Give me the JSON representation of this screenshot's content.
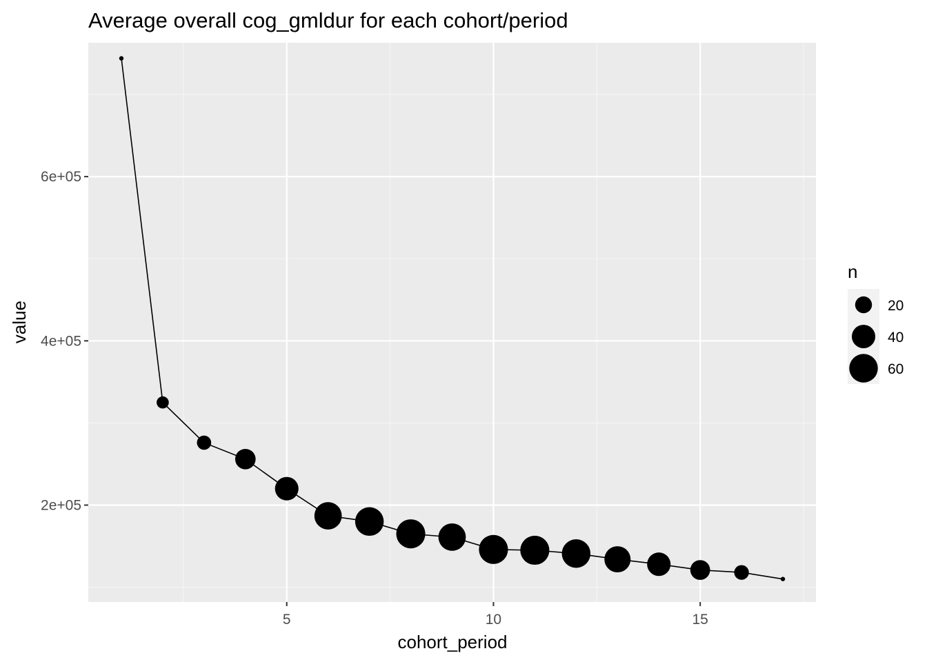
{
  "chart_data": {
    "type": "scatter",
    "title": "Average overall cog_gmldur for each cohort/period",
    "xlabel": "cohort_period",
    "ylabel": "value",
    "xlim": [
      0.2,
      17.8
    ],
    "ylim": [
      82000,
      763000
    ],
    "x_ticks": [
      5,
      10,
      15
    ],
    "x_tick_labels": [
      "5",
      "10",
      "15"
    ],
    "y_ticks": [
      200000,
      400000,
      600000
    ],
    "y_tick_labels": [
      "2e+05",
      "4e+05",
      "6e+05"
    ],
    "grid": true,
    "line": true,
    "legend": {
      "title": "n",
      "placement": "right",
      "entries": [
        {
          "value": 20,
          "label": "20"
        },
        {
          "value": 40,
          "label": "40"
        },
        {
          "value": 60,
          "label": "60"
        }
      ]
    },
    "series": [
      {
        "x": [
          1,
          2,
          3,
          4,
          5,
          6,
          7,
          8,
          9,
          10,
          11,
          12,
          13,
          14,
          15,
          16,
          17
        ],
        "y": [
          744000,
          325000,
          276000,
          256000,
          220000,
          187000,
          180000,
          165000,
          161000,
          146000,
          145000,
          141000,
          134000,
          128000,
          121000,
          118000,
          110000
        ],
        "n": [
          1,
          10,
          14,
          30,
          40,
          55,
          60,
          62,
          55,
          62,
          62,
          60,
          50,
          40,
          28,
          15,
          1
        ]
      }
    ],
    "colors": {
      "panel_background": "#ebebeb",
      "grid_major": "#ffffff",
      "grid_minor": "#f5f5f5",
      "points": "#000000",
      "line": "#000000",
      "tick_label": "#4d4d4d",
      "axis_tick": "#333333"
    }
  }
}
